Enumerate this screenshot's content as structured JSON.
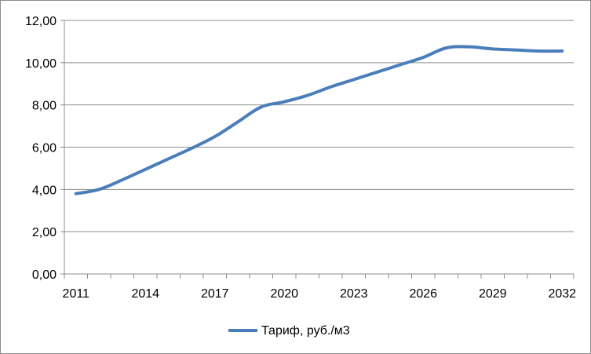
{
  "chart_data": {
    "type": "line",
    "title": "",
    "xlabel": "",
    "ylabel": "",
    "ylim": [
      0,
      12
    ],
    "y_ticks": [
      "0,00",
      "2,00",
      "4,00",
      "6,00",
      "8,00",
      "10,00",
      "12,00"
    ],
    "y_tick_values": [
      0,
      2,
      4,
      6,
      8,
      10,
      12
    ],
    "x_ticks": [
      "2011",
      "2014",
      "2017",
      "2020",
      "2023",
      "2026",
      "2029",
      "2032"
    ],
    "x_tick_values": [
      2011,
      2014,
      2017,
      2020,
      2023,
      2026,
      2029,
      2032
    ],
    "grid": "horizontal",
    "legend_position": "bottom",
    "series": [
      {
        "name": "Тариф, руб./м3",
        "color": "#4a7ebb",
        "x": [
          2011,
          2012,
          2013,
          2014,
          2015,
          2016,
          2017,
          2018,
          2019,
          2020,
          2021,
          2022,
          2023,
          2024,
          2025,
          2026,
          2027,
          2028,
          2029,
          2030,
          2031,
          2032
        ],
        "values": [
          3.8,
          4.0,
          4.45,
          4.95,
          5.45,
          5.95,
          6.5,
          7.2,
          7.9,
          8.15,
          8.45,
          8.85,
          9.2,
          9.55,
          9.9,
          10.25,
          10.7,
          10.75,
          10.65,
          10.6,
          10.55,
          10.55
        ]
      }
    ]
  }
}
